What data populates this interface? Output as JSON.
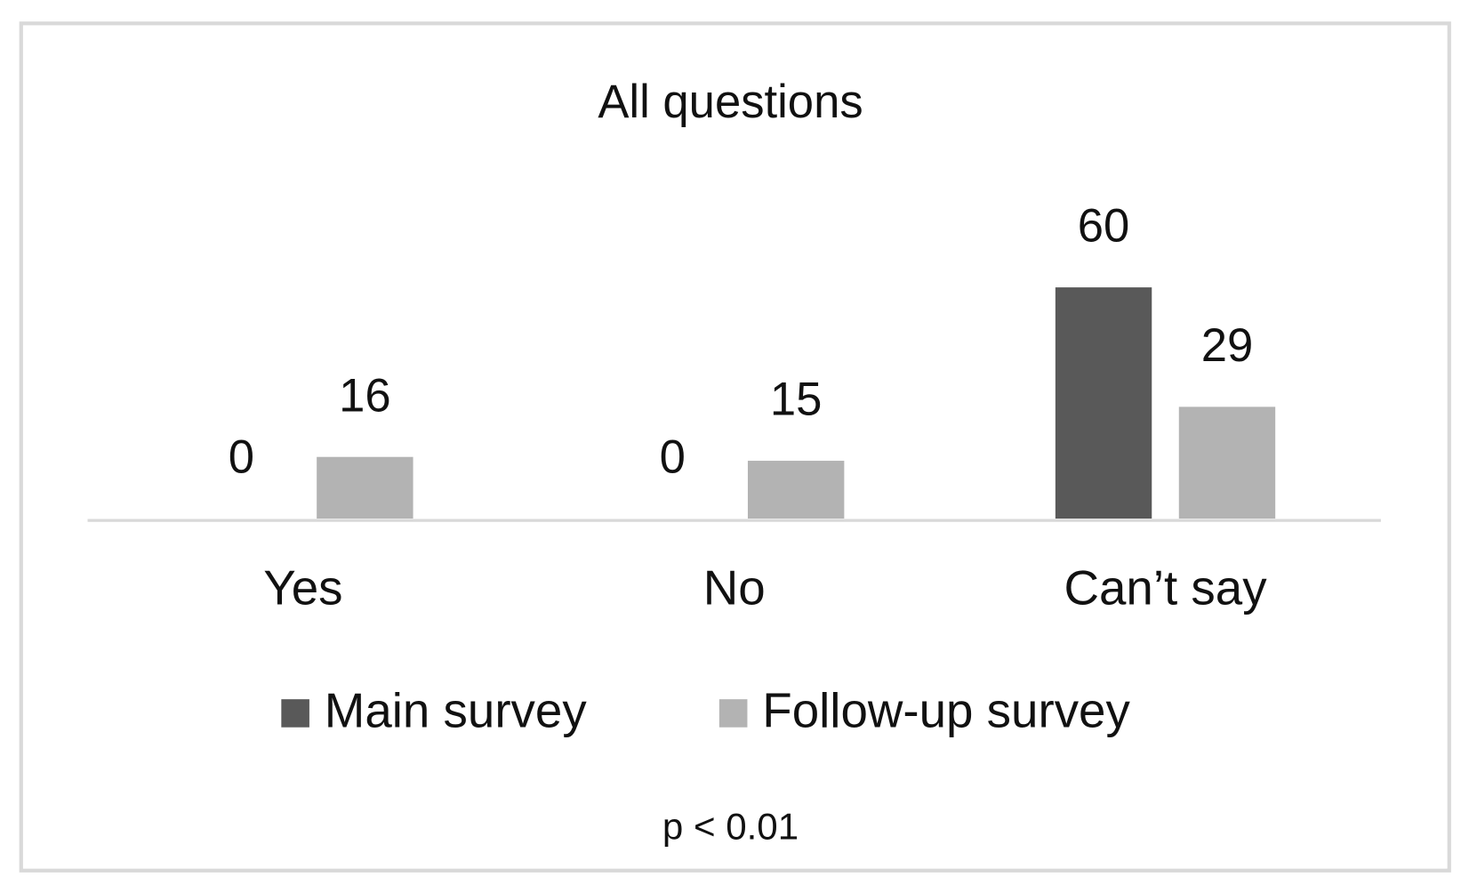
{
  "chart_data": {
    "type": "bar",
    "title": "All questions",
    "categories": [
      "Yes",
      "No",
      "Can’t say"
    ],
    "series": [
      {
        "name": "Main survey",
        "color": "#595959",
        "values": [
          0,
          0,
          60
        ]
      },
      {
        "name": "Follow-up survey",
        "color": "#b3b3b3",
        "values": [
          16,
          15,
          29
        ]
      }
    ],
    "legend": "bottom",
    "annotation": "p < 0.01"
  }
}
